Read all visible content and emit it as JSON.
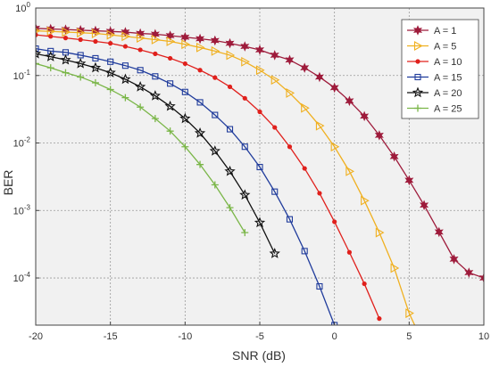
{
  "chart_data": {
    "type": "line",
    "xlabel": "SNR (dB)",
    "ylabel": "BER",
    "xlim": [
      -20,
      10
    ],
    "ylim": [
      2e-05,
      1
    ],
    "y_scale": "log",
    "grid": true,
    "legend_position": "top-right",
    "x_ticks": [
      "-20",
      "-15",
      "-10",
      "-5",
      "0",
      "5",
      "10"
    ],
    "y_ticks": [
      {
        "exp": "0",
        "value": 1
      },
      {
        "exp": "-1",
        "value": 0.1
      },
      {
        "exp": "-2",
        "value": 0.01
      },
      {
        "exp": "-3",
        "value": 0.001
      },
      {
        "exp": "-4",
        "value": 0.0001
      }
    ],
    "series": [
      {
        "name": "A = 1",
        "color": "#9e1b3b",
        "marker": "star6",
        "x": [
          -20,
          -19,
          -18,
          -17,
          -16,
          -15,
          -14,
          -13,
          -12,
          -11,
          -10,
          -9,
          -8,
          -7,
          -6,
          -5,
          -4,
          -3,
          -2,
          -1,
          0,
          1,
          2,
          3,
          4,
          5,
          6,
          7,
          8,
          9,
          10
        ],
        "y": [
          0.5,
          0.49,
          0.48,
          0.47,
          0.46,
          0.45,
          0.44,
          0.42,
          0.41,
          0.39,
          0.37,
          0.35,
          0.33,
          0.3,
          0.27,
          0.24,
          0.2,
          0.17,
          0.13,
          0.095,
          0.066,
          0.042,
          0.025,
          0.013,
          0.0063,
          0.0028,
          0.0012,
          0.00048,
          0.00019,
          0.00012,
          0.0001
        ]
      },
      {
        "name": "A = 5",
        "color": "#f0b020",
        "marker": "triangle-right",
        "x": [
          -20,
          -19,
          -18,
          -17,
          -16,
          -15,
          -14,
          -13,
          -12,
          -11,
          -10,
          -9,
          -8,
          -7,
          -6,
          -5,
          -4,
          -3,
          -2,
          -1,
          0,
          1,
          2,
          3,
          4,
          5,
          6
        ],
        "y": [
          0.46,
          0.45,
          0.44,
          0.43,
          0.42,
          0.4,
          0.38,
          0.36,
          0.34,
          0.32,
          0.29,
          0.26,
          0.23,
          0.2,
          0.16,
          0.12,
          0.086,
          0.055,
          0.033,
          0.018,
          0.0088,
          0.0038,
          0.0014,
          0.00047,
          0.00014,
          3e-05,
          1e-05
        ]
      },
      {
        "name": "A = 10",
        "color": "#e0201c",
        "marker": "dot",
        "x": [
          -20,
          -19,
          -18,
          -17,
          -16,
          -15,
          -14,
          -13,
          -12,
          -11,
          -10,
          -9,
          -8,
          -7,
          -6,
          -5,
          -4,
          -3,
          -2,
          -1,
          0,
          1,
          2,
          3
        ],
        "y": [
          0.4,
          0.38,
          0.36,
          0.34,
          0.32,
          0.3,
          0.27,
          0.24,
          0.21,
          0.18,
          0.15,
          0.12,
          0.093,
          0.068,
          0.046,
          0.029,
          0.017,
          0.0088,
          0.0042,
          0.0018,
          0.00068,
          0.00024,
          8.2e-05,
          2.5e-05
        ]
      },
      {
        "name": "A = 15",
        "color": "#203c9c",
        "marker": "square",
        "x": [
          -20,
          -19,
          -18,
          -17,
          -16,
          -15,
          -14,
          -13,
          -12,
          -11,
          -10,
          -9,
          -8,
          -7,
          -6,
          -5,
          -4,
          -3,
          -2,
          -1,
          0
        ],
        "y": [
          0.25,
          0.23,
          0.22,
          0.2,
          0.18,
          0.16,
          0.14,
          0.12,
          0.097,
          0.076,
          0.057,
          0.04,
          0.026,
          0.016,
          0.0088,
          0.0044,
          0.0019,
          0.00074,
          0.00025,
          7.5e-05,
          2e-05
        ]
      },
      {
        "name": "A = 20",
        "color": "#111111",
        "marker": "star5",
        "x": [
          -20,
          -19,
          -18,
          -17,
          -16,
          -15,
          -14,
          -13,
          -12,
          -11,
          -10,
          -9,
          -8,
          -7,
          -6,
          -5,
          -4
        ],
        "y": [
          0.21,
          0.19,
          0.17,
          0.15,
          0.13,
          0.11,
          0.088,
          0.068,
          0.05,
          0.035,
          0.023,
          0.014,
          0.0076,
          0.0038,
          0.0017,
          0.00066,
          0.00023
        ]
      },
      {
        "name": "A = 25",
        "color": "#7ab648",
        "marker": "plus",
        "x": [
          -20,
          -19,
          -18,
          -17,
          -16,
          -15,
          -14,
          -13,
          -12,
          -11,
          -10,
          -9,
          -8,
          -7,
          -6
        ],
        "y": [
          0.15,
          0.13,
          0.11,
          0.095,
          0.078,
          0.062,
          0.047,
          0.034,
          0.023,
          0.015,
          0.0088,
          0.0048,
          0.0024,
          0.0011,
          0.00047
        ]
      }
    ]
  }
}
